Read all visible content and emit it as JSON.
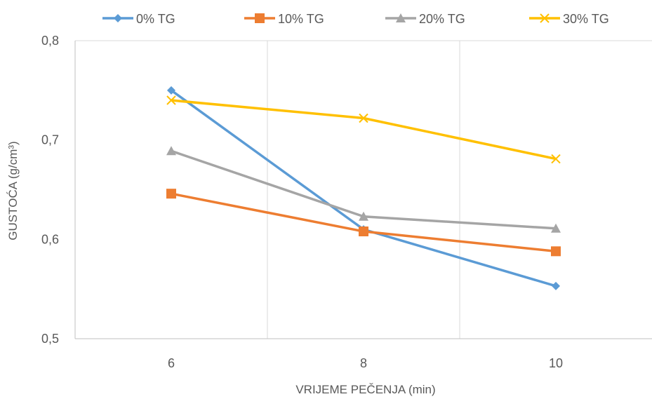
{
  "chart_data": {
    "type": "line",
    "xlabel": "VRIJEME PEČENJA (min)",
    "ylabel": "GUSTOĆA (g/cm³)",
    "x": [
      6,
      8,
      10
    ],
    "xlim": [
      5,
      11
    ],
    "ylim": [
      0.5,
      0.8
    ],
    "x_tick_labels": [
      "6",
      "8",
      "10"
    ],
    "y_tick_labels": [
      "0,5",
      "0,6",
      "0,7",
      "0,8"
    ],
    "grid": "vertical and top horizontal lines",
    "legend_position": "top",
    "series": [
      {
        "name": "0% TG",
        "values": [
          0.75,
          0.61,
          0.553
        ],
        "color": "#5B9BD5",
        "marker": "diamond"
      },
      {
        "name": "10% TG",
        "values": [
          0.646,
          0.608,
          0.588
        ],
        "color": "#ED7D31",
        "marker": "square"
      },
      {
        "name": "20% TG",
        "values": [
          0.689,
          0.623,
          0.611
        ],
        "color": "#A5A5A5",
        "marker": "triangle"
      },
      {
        "name": "30% TG",
        "values": [
          0.74,
          0.722,
          0.681
        ],
        "color": "#FFC000",
        "marker": "x"
      }
    ]
  }
}
